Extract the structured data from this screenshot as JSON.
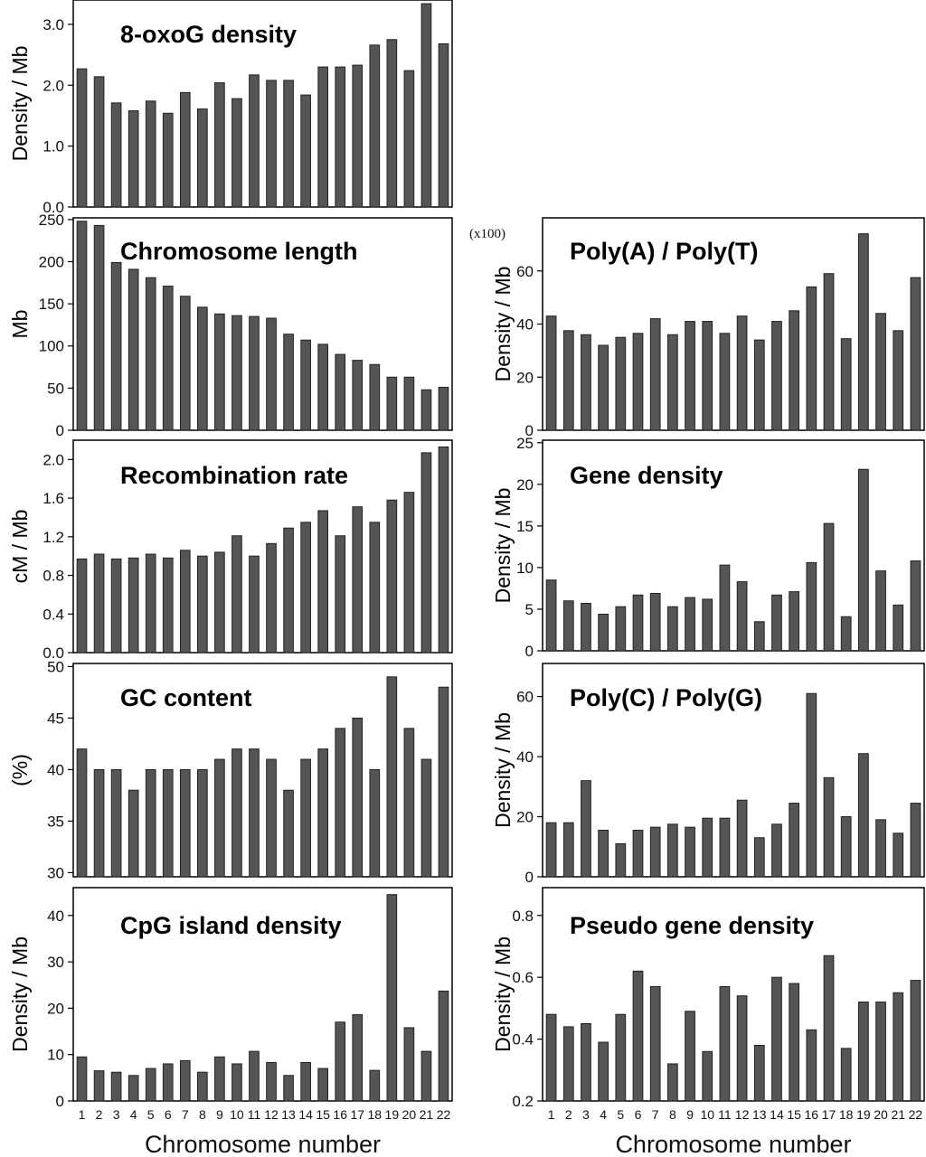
{
  "chart_data": [
    {
      "type": "bar",
      "title": "8-oxoG density",
      "ylabel": "Density / Mb",
      "categories": [
        "1",
        "2",
        "3",
        "4",
        "5",
        "6",
        "7",
        "8",
        "9",
        "10",
        "11",
        "12",
        "13",
        "14",
        "15",
        "16",
        "17",
        "18",
        "19",
        "20",
        "21",
        "22"
      ],
      "values": [
        2.27,
        2.14,
        1.71,
        1.58,
        1.74,
        1.54,
        1.88,
        1.61,
        2.04,
        1.78,
        2.17,
        2.08,
        2.08,
        1.84,
        2.3,
        2.3,
        2.33,
        2.66,
        2.75,
        2.24,
        3.34,
        2.68
      ],
      "ylim": [
        0,
        3.4
      ],
      "yticks": [
        "0.0",
        "1.0",
        "2.0",
        "3.0"
      ],
      "ytick_values": [
        0,
        1,
        2,
        3
      ],
      "xlabel": ""
    },
    {
      "type": "bar",
      "title": "Chromosome length",
      "ylabel": "Mb",
      "categories": [
        "1",
        "2",
        "3",
        "4",
        "5",
        "6",
        "7",
        "8",
        "9",
        "10",
        "11",
        "12",
        "13",
        "14",
        "15",
        "16",
        "17",
        "18",
        "19",
        "20",
        "21",
        "22"
      ],
      "values": [
        248,
        243,
        199,
        191,
        181,
        171,
        159,
        146,
        138,
        136,
        135,
        133,
        114,
        107,
        102,
        90,
        83,
        78,
        63,
        63,
        48,
        51
      ],
      "ylim": [
        0,
        252
      ],
      "yticks": [
        "0",
        "50",
        "100",
        "150",
        "200",
        "250"
      ],
      "ytick_values": [
        0,
        50,
        100,
        150,
        200,
        250
      ],
      "xlabel": ""
    },
    {
      "type": "bar",
      "title": "Recombination rate",
      "ylabel": "cM / Mb",
      "categories": [
        "1",
        "2",
        "3",
        "4",
        "5",
        "6",
        "7",
        "8",
        "9",
        "10",
        "11",
        "12",
        "13",
        "14",
        "15",
        "16",
        "17",
        "18",
        "19",
        "20",
        "21",
        "22"
      ],
      "values": [
        0.97,
        1.02,
        0.97,
        0.98,
        1.02,
        0.98,
        1.06,
        1.0,
        1.04,
        1.21,
        1.0,
        1.13,
        1.29,
        1.35,
        1.47,
        1.21,
        1.51,
        1.35,
        1.58,
        1.66,
        2.07,
        2.13
      ],
      "ylim": [
        0,
        2.2
      ],
      "yticks": [
        "0.0",
        "0.4",
        "0.8",
        "1.2",
        "1.6",
        "2.0"
      ],
      "ytick_values": [
        0,
        0.4,
        0.8,
        1.2,
        1.6,
        2.0
      ],
      "xlabel": ""
    },
    {
      "type": "bar",
      "title": "GC content",
      "ylabel": "(%)",
      "categories": [
        "1",
        "2",
        "3",
        "4",
        "5",
        "6",
        "7",
        "8",
        "9",
        "10",
        "11",
        "12",
        "13",
        "14",
        "15",
        "16",
        "17",
        "18",
        "19",
        "20",
        "21",
        "22"
      ],
      "values": [
        42,
        40,
        40,
        38,
        40,
        40,
        40,
        40,
        41,
        42,
        42,
        41,
        38,
        41,
        42,
        44,
        45,
        40,
        49,
        44,
        41,
        48
      ],
      "ylim": [
        29.6,
        50.3
      ],
      "yticks": [
        "30",
        "35",
        "40",
        "45",
        "50"
      ],
      "ytick_values": [
        30,
        35,
        40,
        45,
        50
      ],
      "xlabel": ""
    },
    {
      "type": "bar",
      "title": "CpG island density",
      "ylabel": "Density / Mb",
      "categories": [
        "1",
        "2",
        "3",
        "4",
        "5",
        "6",
        "7",
        "8",
        "9",
        "10",
        "11",
        "12",
        "13",
        "14",
        "15",
        "16",
        "17",
        "18",
        "19",
        "20",
        "21",
        "22"
      ],
      "values": [
        9.5,
        6.5,
        6.2,
        5.5,
        7,
        8,
        8.7,
        6.2,
        9.5,
        8,
        10.7,
        8.3,
        5.5,
        8.3,
        7,
        17,
        18.6,
        6.6,
        44.5,
        15.8,
        10.7,
        23.7
      ],
      "ylim": [
        0,
        46
      ],
      "yticks": [
        "0",
        "10",
        "20",
        "30",
        "40"
      ],
      "ytick_values": [
        0,
        10,
        20,
        30,
        40
      ],
      "xlabel": "Chromosome number"
    },
    {
      "type": "bar",
      "title": "Poly(A) / Poly(T)",
      "ylabel": "Density / Mb",
      "multiplier": "(x100)",
      "categories": [
        "1",
        "2",
        "3",
        "4",
        "5",
        "6",
        "7",
        "8",
        "9",
        "10",
        "11",
        "12",
        "13",
        "14",
        "15",
        "16",
        "17",
        "18",
        "19",
        "20",
        "21",
        "22"
      ],
      "values": [
        43,
        37.5,
        36,
        32,
        35,
        36.5,
        42,
        36,
        41,
        41,
        36.5,
        43,
        34,
        41,
        45,
        54,
        59,
        34.5,
        74,
        44,
        37.5,
        57.5
      ],
      "ylim": [
        0,
        80
      ],
      "yticks": [
        "0",
        "20",
        "40",
        "60"
      ],
      "ytick_values": [
        0,
        20,
        40,
        60
      ],
      "xlabel": ""
    },
    {
      "type": "bar",
      "title": "Gene density",
      "ylabel": "Density / Mb",
      "categories": [
        "1",
        "2",
        "3",
        "4",
        "5",
        "6",
        "7",
        "8",
        "9",
        "10",
        "11",
        "12",
        "13",
        "14",
        "15",
        "16",
        "17",
        "18",
        "19",
        "20",
        "21",
        "22"
      ],
      "values": [
        8.5,
        6,
        5.7,
        4.4,
        5.3,
        6.7,
        6.9,
        5.3,
        6.4,
        6.2,
        10.3,
        8.3,
        3.5,
        6.7,
        7.1,
        10.6,
        15.3,
        4.1,
        21.8,
        9.6,
        5.5,
        10.8
      ],
      "ylim": [
        0,
        25.3
      ],
      "yticks": [
        "0",
        "5",
        "10",
        "15",
        "20",
        "25"
      ],
      "ytick_values": [
        0,
        5,
        10,
        15,
        20,
        25
      ],
      "xlabel": ""
    },
    {
      "type": "bar",
      "title": "Poly(C) / Poly(G)",
      "ylabel": "Density / Mb",
      "categories": [
        "1",
        "2",
        "3",
        "4",
        "5",
        "6",
        "7",
        "8",
        "9",
        "10",
        "11",
        "12",
        "13",
        "14",
        "15",
        "16",
        "17",
        "18",
        "19",
        "20",
        "21",
        "22"
      ],
      "values": [
        18,
        18,
        32,
        15.5,
        11,
        15.5,
        16.5,
        17.5,
        16.5,
        19.5,
        19.5,
        25.5,
        13,
        17.5,
        24.5,
        61,
        33,
        20,
        41,
        19,
        14.5,
        24.5
      ],
      "ylim": [
        0,
        71
      ],
      "yticks": [
        "0",
        "20",
        "40",
        "60"
      ],
      "ytick_values": [
        0,
        20,
        40,
        60
      ],
      "xlabel": ""
    },
    {
      "type": "bar",
      "title": "Pseudo gene density",
      "ylabel": "Density / Mb",
      "categories": [
        "1",
        "2",
        "3",
        "4",
        "5",
        "6",
        "7",
        "8",
        "9",
        "10",
        "11",
        "12",
        "13",
        "14",
        "15",
        "16",
        "17",
        "18",
        "19",
        "20",
        "21",
        "22"
      ],
      "values": [
        0.48,
        0.44,
        0.45,
        0.39,
        0.48,
        0.62,
        0.57,
        0.32,
        0.49,
        0.36,
        0.57,
        0.54,
        0.38,
        0.6,
        0.58,
        0.43,
        0.67,
        0.37,
        0.52,
        0.52,
        0.55,
        0.59
      ],
      "ylim": [
        0.2,
        0.89
      ],
      "yticks": [
        "0.2",
        "0.4",
        "0.6",
        "0.8"
      ],
      "ytick_values": [
        0.2,
        0.4,
        0.6,
        0.8
      ],
      "xlabel": "Chromosome number"
    }
  ]
}
